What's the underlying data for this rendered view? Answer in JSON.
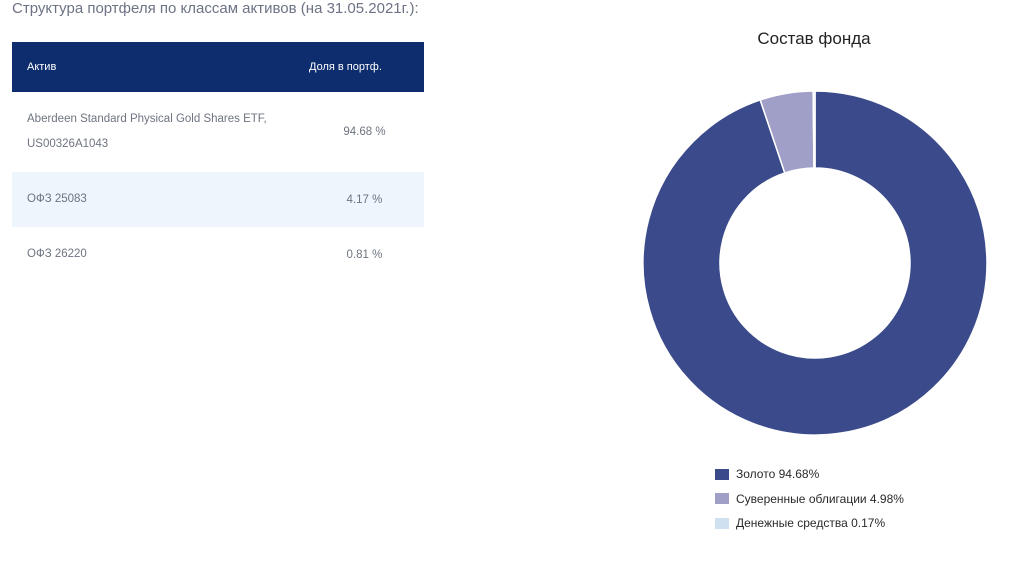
{
  "page": {
    "section_title": "Структура портфеля по классам активов (на 31.05.2021г.):"
  },
  "table": {
    "headers": {
      "asset": "Актив",
      "share": "Доля в портф."
    },
    "rows": [
      {
        "asset_line1": "Aberdeen Standard Physical Gold Shares ETF,",
        "asset_line2": "US00326A1043",
        "share": "94.68 %"
      },
      {
        "asset_line1": "ОФЗ 25083",
        "asset_line2": "",
        "share": "4.17 %"
      },
      {
        "asset_line1": "ОФЗ 26220",
        "asset_line2": "",
        "share": "0.81 %"
      }
    ]
  },
  "chart_data": {
    "type": "pie",
    "donut": true,
    "title": "Состав фонда",
    "legend_position": "bottom",
    "slices": [
      {
        "label": "Золото 94.68%",
        "value": 94.68,
        "color": "#3b4a8a"
      },
      {
        "label": "Суверенные облигации 4.98%",
        "value": 4.98,
        "color": "#a09fc8"
      },
      {
        "label": "Денежные средства 0.17%",
        "value": 0.17,
        "color": "#cfe0f1"
      }
    ]
  }
}
